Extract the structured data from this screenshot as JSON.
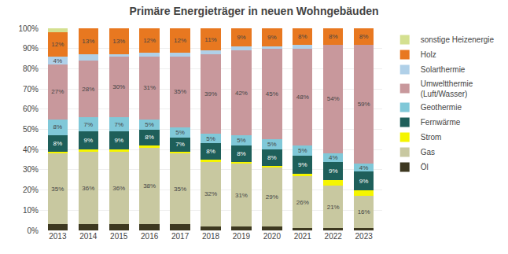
{
  "chart_data": {
    "type": "bar",
    "title": "Primäre Energieträger in neuen Wohngebäuden",
    "stacked": true,
    "data_labels": true,
    "grid": true,
    "legend": "upper right",
    "categories": [
      "2013",
      "2014",
      "2015",
      "2016",
      "2017",
      "2018",
      "2019",
      "2020",
      "2021",
      "2022",
      "2023"
    ],
    "ylim": [
      0,
      100
    ],
    "yticks": [
      {
        "value": 0,
        "label": "0%"
      },
      {
        "value": 10,
        "label": "10%"
      },
      {
        "value": 20,
        "label": "20%"
      },
      {
        "value": 30,
        "label": "30%"
      },
      {
        "value": 40,
        "label": "40%"
      },
      {
        "value": 50,
        "label": "50%"
      },
      {
        "value": 60,
        "label": "60%"
      },
      {
        "value": 70,
        "label": "70%"
      },
      {
        "value": 80,
        "label": "80%"
      },
      {
        "value": 90,
        "label": "90%"
      },
      {
        "value": 100,
        "label": "100%"
      }
    ],
    "series": [
      {
        "name": "Öl",
        "color": "#3d3820",
        "values": [
          3,
          3,
          3,
          3,
          3,
          2,
          2,
          2,
          1,
          1,
          1
        ],
        "value_labels": [
          null,
          null,
          null,
          null,
          null,
          null,
          null,
          null,
          null,
          null,
          null
        ]
      },
      {
        "name": "Gas",
        "color": "#c8c8a0",
        "values": [
          35,
          36,
          36,
          38,
          35,
          32,
          31,
          29,
          26,
          21,
          16
        ],
        "value_labels": [
          "35%",
          "36%",
          "36%",
          "38%",
          "35%",
          "32%",
          "31%",
          "29%",
          "26%",
          "21%",
          "16%"
        ]
      },
      {
        "name": "Strom",
        "color": "#f5f500",
        "values": [
          1,
          1,
          1,
          1,
          1,
          1,
          1,
          1,
          1,
          3,
          3
        ],
        "value_labels": [
          null,
          null,
          null,
          null,
          null,
          null,
          null,
          null,
          null,
          null,
          null
        ]
      },
      {
        "name": "Fernwärme",
        "color": "#1e5f5a",
        "values": [
          8,
          9,
          9,
          8,
          7,
          8,
          8,
          8,
          9,
          9,
          9
        ],
        "value_labels": [
          "8%",
          "9%",
          "9%",
          "8%",
          "7%",
          "8%",
          "8%",
          "8%",
          "9%",
          "9%",
          "9%"
        ]
      },
      {
        "name": "Geothermie",
        "color": "#80c8d8",
        "values": [
          8,
          7,
          7,
          5,
          5,
          5,
          5,
          5,
          5,
          4,
          4
        ],
        "value_labels": [
          "8%",
          "7%",
          "7%",
          "5%",
          "5%",
          "5%",
          "5%",
          "5%",
          "5%",
          "4%",
          "4%"
        ]
      },
      {
        "name": "Umweltthermie\n(Luft/Wasser)",
        "color": "#c8989c",
        "values": [
          27,
          28,
          30,
          31,
          35,
          39,
          42,
          45,
          48,
          54,
          59
        ],
        "value_labels": [
          "27%",
          "28%",
          "30%",
          "31%",
          "35%",
          "39%",
          "42%",
          "45%",
          "48%",
          "54%",
          "59%"
        ]
      },
      {
        "name": "Solarthermie",
        "color": "#b0d0e8",
        "values": [
          4,
          3,
          1,
          2,
          2,
          2,
          2,
          1,
          2,
          0,
          0
        ],
        "value_labels": [
          "4%",
          null,
          null,
          null,
          null,
          null,
          null,
          null,
          null,
          null,
          null
        ]
      },
      {
        "name": "Holz",
        "color": "#e87820",
        "values": [
          12,
          13,
          13,
          12,
          12,
          11,
          9,
          9,
          8,
          8,
          8
        ],
        "value_labels": [
          "12%",
          "13%",
          "13%",
          "12%",
          "12%",
          "11%",
          "9%",
          "9%",
          "8%",
          "8%",
          "8%"
        ]
      },
      {
        "name": "sonstige Heizenergie",
        "color": "#d4e090",
        "values": [
          2,
          0,
          0,
          0,
          0,
          0,
          0,
          0,
          0,
          0,
          0
        ],
        "value_labels": [
          null,
          null,
          null,
          null,
          null,
          null,
          null,
          null,
          null,
          null,
          null
        ]
      }
    ]
  }
}
